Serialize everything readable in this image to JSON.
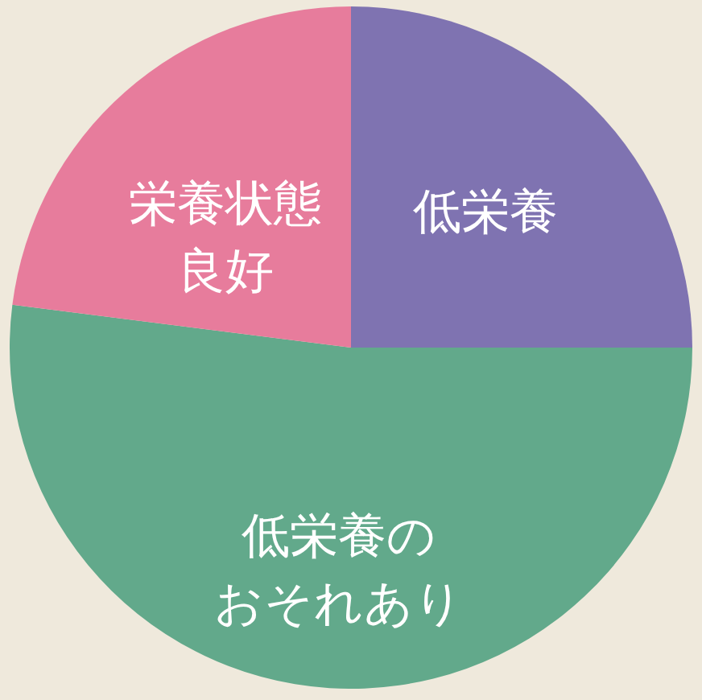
{
  "chart_data": {
    "type": "pie",
    "categories": [
      "低栄養",
      "低栄養のおそれあり",
      "栄養状態良好"
    ],
    "values": [
      25,
      52,
      23
    ],
    "colors": [
      "#7f73b1",
      "#62a98b",
      "#e77c9c"
    ]
  }
}
